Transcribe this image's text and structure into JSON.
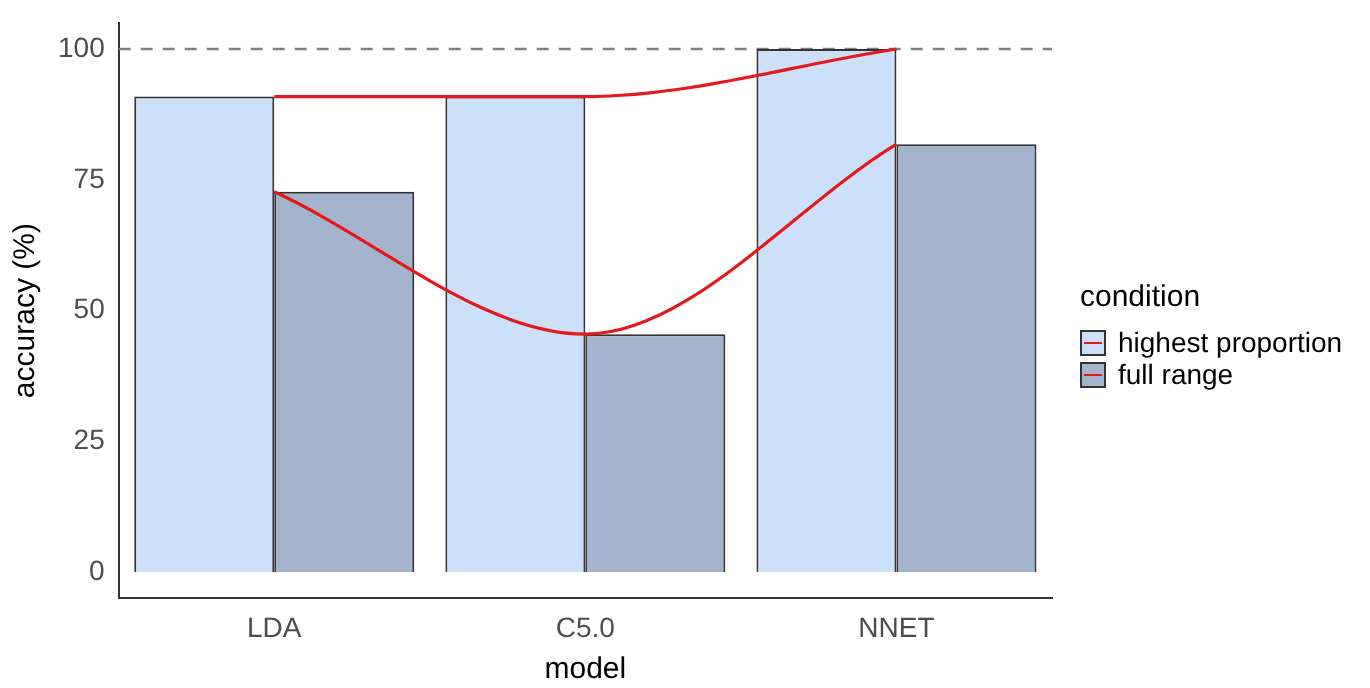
{
  "chart_data": {
    "type": "bar",
    "xlabel": "model",
    "ylabel": "accuracy (%)",
    "legend_title": "condition",
    "categories": [
      "LDA",
      "C5.0",
      "NNET"
    ],
    "series": [
      {
        "name": "highest proportion",
        "color": "#cce0fa",
        "values": [
          90.9,
          90.9,
          100
        ]
      },
      {
        "name": "full range",
        "color": "#a3b4cc",
        "values": [
          72.7,
          45.5,
          81.8
        ]
      },
      {
        "type": "line",
        "color": "#e31a1c",
        "values": [
          90.9,
          90.9,
          100
        ]
      },
      {
        "type": "line",
        "color": "#e31a1c",
        "values": [
          72.7,
          45.5,
          81.8
        ]
      }
    ],
    "ylim": [
      -5,
      105
    ],
    "yticks": [
      0,
      25,
      50,
      75,
      100
    ],
    "legend": "right",
    "ref_lines": [
      {
        "axis": "y",
        "value": 100,
        "color": "#808080",
        "line_style": "dashed"
      }
    ]
  }
}
